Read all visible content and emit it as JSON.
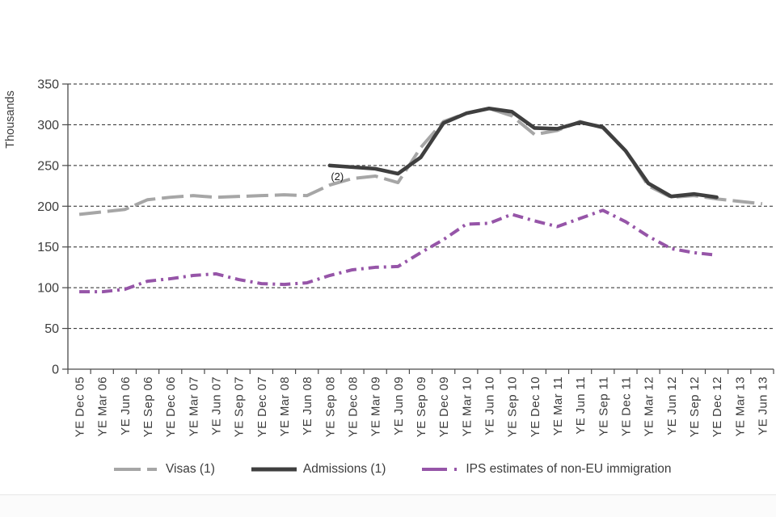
{
  "chart_data": {
    "type": "line",
    "title": "",
    "ylabel": "Thousands",
    "xlabel": "",
    "ylim": [
      0,
      350
    ],
    "yticks": [
      0,
      50,
      100,
      150,
      200,
      250,
      300,
      350
    ],
    "grid": "horizontal-dashed",
    "legend_position": "bottom",
    "categories": [
      "YE Dec 05",
      "YE Mar 06",
      "YE Jun 06",
      "YE Sep 06",
      "YE Dec 06",
      "YE Mar 07",
      "YE Jun 07",
      "YE Sep 07",
      "YE Dec 07",
      "YE Mar 08",
      "YE Jun 08",
      "YE Sep 08",
      "YE Dec 08",
      "YE Mar 09",
      "YE Jun 09",
      "YE Sep 09",
      "YE Dec 09",
      "YE Mar 10",
      "YE Jun 10",
      "YE Sep 10",
      "YE Dec 10",
      "YE Mar 11",
      "YE Jun 11",
      "YE Sep 11",
      "YE Dec 11",
      "YE Mar 12",
      "YE Jun 12",
      "YE Sep 12",
      "YE Dec 12",
      "YE Mar 13",
      "YE Jun 13"
    ],
    "series": [
      {
        "name": "Visas (1)",
        "color": "#a6a6a6",
        "style": "long-dash",
        "start_index": 0,
        "values": [
          190,
          193,
          196,
          208,
          211,
          213,
          211,
          212,
          213,
          214,
          213,
          226,
          234,
          237,
          229,
          272,
          304,
          314,
          320,
          311,
          288,
          293,
          304,
          296,
          268,
          225,
          211,
          213,
          209,
          206,
          203
        ]
      },
      {
        "name": "Admissions (1)",
        "color": "#3f3f3f",
        "style": "solid",
        "start_index": 11,
        "values": [
          250,
          248,
          246,
          240,
          260,
          302,
          314,
          320,
          316,
          296,
          295,
          303,
          297,
          268,
          228,
          212,
          215,
          211
        ]
      },
      {
        "name": "IPS estimates of non-EU immigration",
        "color": "#9655a8",
        "style": "dash-dot",
        "start_index": 0,
        "values": [
          95,
          95,
          98,
          108,
          111,
          115,
          117,
          110,
          105,
          104,
          106,
          115,
          122,
          125,
          126,
          143,
          159,
          178,
          179,
          190,
          182,
          175,
          185,
          195,
          181,
          163,
          148,
          143,
          140
        ]
      }
    ],
    "annotation": {
      "text": "(2)",
      "x_index": 11,
      "value": 232
    }
  }
}
